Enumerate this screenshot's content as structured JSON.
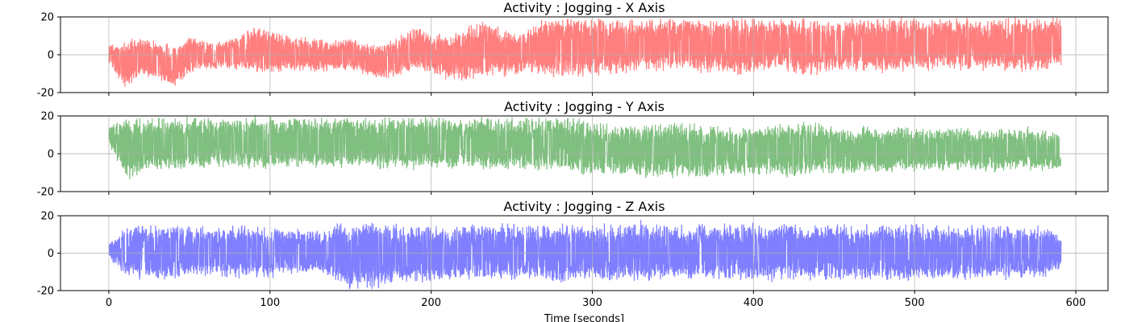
{
  "chart_data": [
    {
      "type": "line",
      "title": "Activity : Jogging - X Axis",
      "color": "#ff0000",
      "alpha": 0.5,
      "xlim": [
        -30,
        620
      ],
      "ylim": [
        -20,
        20
      ],
      "xticks": [
        0,
        100,
        200,
        300,
        400,
        500,
        600
      ],
      "yticks": [
        -20,
        0,
        20
      ],
      "show_xtick_labels": false,
      "grid": true,
      "x_range": [
        0,
        591
      ],
      "envelope_x": [
        0,
        10,
        20,
        30,
        40,
        50,
        60,
        70,
        80,
        90,
        100,
        110,
        120,
        130,
        140,
        150,
        160,
        170,
        180,
        190,
        200,
        210,
        220,
        230,
        240,
        250,
        260,
        270,
        280,
        290,
        300,
        310,
        320,
        330,
        340,
        350,
        360,
        370,
        380,
        390,
        400,
        410,
        420,
        430,
        440,
        450,
        460,
        470,
        480,
        490,
        500,
        510,
        520,
        530,
        540,
        550,
        560,
        570,
        580,
        590
      ],
      "envelope_upper": [
        5,
        8,
        10,
        8,
        6,
        10,
        8,
        7,
        10,
        16,
        14,
        11,
        10,
        9,
        8,
        9,
        8,
        6,
        10,
        16,
        12,
        12,
        14,
        20,
        16,
        12,
        14,
        20,
        20,
        20,
        20,
        20,
        20,
        20,
        20,
        20,
        20,
        20,
        20,
        20,
        20,
        20,
        20,
        20,
        20,
        20,
        20,
        20,
        20,
        20,
        20,
        20,
        20,
        20,
        20,
        20,
        20,
        20,
        20,
        20
      ],
      "envelope_lower": [
        -5,
        -18,
        -12,
        -14,
        -18,
        -10,
        -8,
        -8,
        -9,
        -10,
        -11,
        -9,
        -9,
        -10,
        -9,
        -9,
        -12,
        -14,
        -12,
        -9,
        -10,
        -14,
        -16,
        -12,
        -12,
        -12,
        -10,
        -12,
        -13,
        -14,
        -12,
        -11,
        -12,
        -10,
        -10,
        -9,
        -10,
        -10,
        -10,
        -12,
        -11,
        -10,
        -9,
        -12,
        -11,
        -10,
        -9,
        -9,
        -10,
        -10,
        -9,
        -9,
        -9,
        -9,
        -9,
        -9,
        -10,
        -10,
        -9,
        -8
      ]
    },
    {
      "type": "line",
      "title": "Activity : Jogging - Y Axis",
      "color": "#008000",
      "alpha": 0.5,
      "xlim": [
        -30,
        620
      ],
      "ylim": [
        -20,
        20
      ],
      "xticks": [
        0,
        100,
        200,
        300,
        400,
        500,
        600
      ],
      "yticks": [
        -20,
        0,
        20
      ],
      "show_xtick_labels": false,
      "grid": true,
      "x_range": [
        0,
        591
      ],
      "envelope_x": [
        0,
        10,
        20,
        30,
        40,
        50,
        60,
        70,
        80,
        90,
        100,
        110,
        120,
        130,
        140,
        150,
        160,
        170,
        180,
        190,
        200,
        210,
        220,
        230,
        240,
        250,
        260,
        270,
        280,
        290,
        300,
        310,
        320,
        330,
        340,
        350,
        360,
        370,
        380,
        390,
        400,
        410,
        420,
        430,
        440,
        450,
        460,
        470,
        480,
        490,
        500,
        510,
        520,
        530,
        540,
        550,
        560,
        570,
        580,
        590
      ],
      "envelope_upper": [
        15,
        20,
        20,
        20,
        20,
        20,
        20,
        20,
        20,
        20,
        20,
        20,
        20,
        20,
        20,
        20,
        20,
        20,
        20,
        20,
        20,
        20,
        20,
        20,
        20,
        20,
        20,
        20,
        20,
        20,
        17,
        16,
        16,
        16,
        17,
        18,
        17,
        16,
        15,
        16,
        15,
        16,
        16,
        18,
        17,
        15,
        14,
        15,
        14,
        15,
        14,
        14,
        15,
        14,
        13,
        14,
        14,
        15,
        13,
        12
      ],
      "envelope_lower": [
        5,
        -15,
        -12,
        -10,
        -10,
        -9,
        -9,
        -8,
        -8,
        -9,
        -8,
        -8,
        -8,
        -8,
        -9,
        -8,
        -8,
        -9,
        -9,
        -9,
        -9,
        -9,
        -8,
        -9,
        -9,
        -9,
        -10,
        -10,
        -10,
        -12,
        -12,
        -11,
        -12,
        -13,
        -14,
        -15,
        -13,
        -14,
        -12,
        -12,
        -12,
        -12,
        -13,
        -12,
        -11,
        -11,
        -11,
        -10,
        -11,
        -10,
        -10,
        -10,
        -9,
        -9,
        -10,
        -10,
        -9,
        -9,
        -10,
        -8
      ]
    },
    {
      "type": "line",
      "title": "Activity : Jogging - Z Axis",
      "color": "#0000ff",
      "alpha": 0.5,
      "xlim": [
        -30,
        620
      ],
      "ylim": [
        -20,
        20
      ],
      "xticks": [
        0,
        100,
        200,
        300,
        400,
        500,
        600
      ],
      "yticks": [
        -20,
        0,
        20
      ],
      "xlabel": "Time [seconds]",
      "show_xtick_labels": true,
      "grid": true,
      "x_range": [
        0,
        591
      ],
      "envelope_x": [
        0,
        10,
        20,
        30,
        40,
        50,
        60,
        70,
        80,
        90,
        100,
        110,
        120,
        130,
        140,
        150,
        160,
        170,
        180,
        190,
        200,
        210,
        220,
        230,
        240,
        250,
        260,
        270,
        280,
        290,
        300,
        310,
        320,
        330,
        340,
        350,
        360,
        370,
        380,
        390,
        400,
        410,
        420,
        430,
        440,
        450,
        460,
        470,
        480,
        490,
        500,
        510,
        520,
        530,
        540,
        550,
        560,
        570,
        580,
        590
      ],
      "envelope_upper": [
        5,
        14,
        16,
        15,
        16,
        16,
        15,
        14,
        16,
        15,
        15,
        14,
        14,
        12,
        16,
        17,
        19,
        17,
        16,
        15,
        16,
        15,
        16,
        17,
        16,
        17,
        16,
        16,
        17,
        16,
        17,
        16,
        17,
        18,
        17,
        16,
        16,
        17,
        16,
        16,
        17,
        16,
        17,
        16,
        16,
        17,
        16,
        16,
        17,
        16,
        17,
        16,
        16,
        15,
        16,
        15,
        16,
        15,
        15,
        10
      ],
      "envelope_lower": [
        -3,
        -12,
        -15,
        -14,
        -15,
        -14,
        -13,
        -13,
        -14,
        -14,
        -14,
        -13,
        -12,
        -11,
        -15,
        -20,
        -20,
        -19,
        -17,
        -16,
        -16,
        -15,
        -16,
        -15,
        -15,
        -16,
        -15,
        -16,
        -17,
        -16,
        -15,
        -16,
        -15,
        -16,
        -16,
        -15,
        -16,
        -15,
        -15,
        -16,
        -15,
        -16,
        -15,
        -15,
        -16,
        -15,
        -15,
        -16,
        -15,
        -15,
        -16,
        -15,
        -14,
        -15,
        -14,
        -14,
        -15,
        -14,
        -14,
        -9
      ]
    }
  ]
}
